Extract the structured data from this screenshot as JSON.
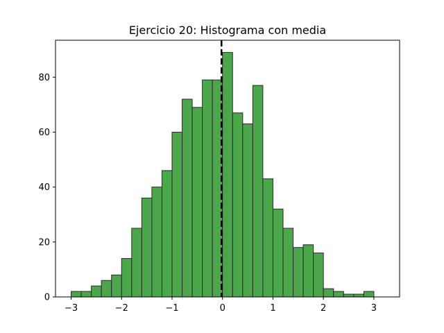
{
  "chart_data": {
    "type": "bar",
    "title": "Ejercicio 20: Histograma con media",
    "xlabel": "",
    "ylabel": "",
    "xlim": [
      -3.31,
      3.51
    ],
    "ylim": [
      0,
      93.45
    ],
    "xticks": [
      -3,
      -2,
      -1,
      0,
      1,
      2,
      3
    ],
    "xtick_labels": [
      "−3",
      "−2",
      "−1",
      "0",
      "1",
      "2",
      "3"
    ],
    "yticks": [
      0,
      20,
      40,
      60,
      80
    ],
    "ytick_labels": [
      "0",
      "20",
      "40",
      "60",
      "80"
    ],
    "bin_edges": [
      -3.0,
      -2.8,
      -2.6,
      -2.4,
      -2.2,
      -2.0,
      -1.8,
      -1.6,
      -1.4,
      -1.2,
      -1.0,
      -0.8,
      -0.6,
      -0.4,
      -0.2,
      0.0,
      0.2,
      0.4,
      0.6,
      0.8,
      1.0,
      1.2,
      1.4,
      1.6,
      1.8,
      2.0,
      2.2,
      2.4,
      2.6,
      2.8,
      3.0,
      3.2
    ],
    "counts": [
      2,
      2,
      4,
      6,
      8,
      14,
      25,
      36,
      40,
      46,
      60,
      72,
      69,
      79,
      79,
      89,
      67,
      63,
      77,
      43,
      32,
      25,
      18,
      19,
      16,
      3,
      2,
      1,
      1,
      2,
      0
    ],
    "mean": -0.02,
    "bar_color": "#4ca64c",
    "edge_color": "#2a2a2a",
    "mean_line_color": "#000000",
    "mean_line_style": "dashed"
  }
}
